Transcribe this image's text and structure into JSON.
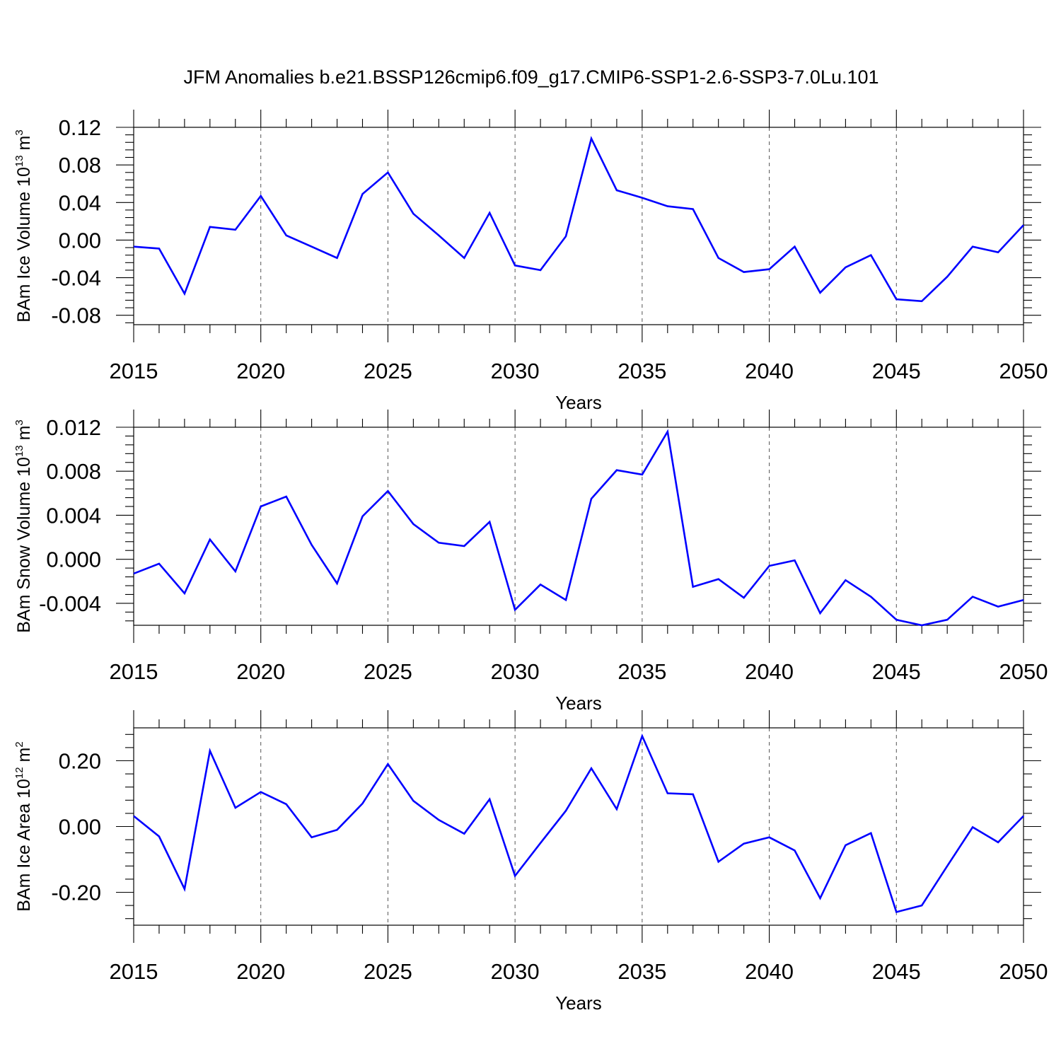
{
  "title": "JFM Anomalies b.e21.BSSP126cmip6.f09_g17.CMIP6-SSP1-2.6-SSP3-7.0Lu.101",
  "colors": {
    "line": "#0000ff",
    "grid": "#555555",
    "axis": "#000000"
  },
  "chart_data": [
    {
      "type": "line",
      "xlabel": "Years",
      "ylabel": {
        "text": "BAm Ice Volume 10",
        "sup1": "13",
        "unit": " m",
        "sup2": "3"
      },
      "xlim": [
        2015,
        2050
      ],
      "ylim": [
        -0.09,
        0.12
      ],
      "xticks": [
        2015,
        2020,
        2025,
        2030,
        2035,
        2040,
        2045,
        2050
      ],
      "xtick_labels": [
        "2015",
        "2020",
        "2025",
        "2030",
        "2035",
        "2040",
        "2045",
        "2050"
      ],
      "yticks": [
        -0.08,
        -0.04,
        0.0,
        0.04,
        0.08,
        0.12
      ],
      "ytick_labels": [
        "-0.08",
        "-0.04",
        "0.00",
        "0.04",
        "0.08",
        "0.12"
      ],
      "grid": "dashed vertical at major x ticks",
      "x": [
        2015,
        2016,
        2017,
        2018,
        2019,
        2020,
        2021,
        2022,
        2023,
        2024,
        2025,
        2026,
        2027,
        2028,
        2029,
        2030,
        2031,
        2032,
        2033,
        2034,
        2035,
        2036,
        2037,
        2038,
        2039,
        2040,
        2041,
        2042,
        2043,
        2044,
        2045,
        2046,
        2047,
        2048,
        2049,
        2050
      ],
      "y": [
        -0.007,
        -0.009,
        -0.057,
        0.014,
        0.011,
        0.047,
        0.005,
        -0.007,
        -0.019,
        0.049,
        0.072,
        0.028,
        0.005,
        -0.019,
        0.029,
        -0.027,
        -0.032,
        0.004,
        0.108,
        0.053,
        0.045,
        0.036,
        0.033,
        -0.019,
        -0.034,
        -0.031,
        -0.007,
        -0.056,
        -0.029,
        -0.016,
        -0.063,
        -0.065,
        -0.039,
        -0.007,
        -0.013,
        0.016
      ]
    },
    {
      "type": "line",
      "xlabel": "Years",
      "ylabel": {
        "text": "BAm Snow Volume 10",
        "sup1": "13",
        "unit": " m",
        "sup2": "3"
      },
      "xlim": [
        2015,
        2050
      ],
      "ylim": [
        -0.006,
        0.012
      ],
      "xticks": [
        2015,
        2020,
        2025,
        2030,
        2035,
        2040,
        2045,
        2050
      ],
      "xtick_labels": [
        "2015",
        "2020",
        "2025",
        "2030",
        "2035",
        "2040",
        "2045",
        "2050"
      ],
      "yticks": [
        -0.004,
        0.0,
        0.004,
        0.008,
        0.012
      ],
      "ytick_labels": [
        "-0.004",
        "0.000",
        "0.004",
        "0.008",
        "0.012"
      ],
      "grid": "dashed vertical at major x ticks",
      "x": [
        2015,
        2016,
        2017,
        2018,
        2019,
        2020,
        2021,
        2022,
        2023,
        2024,
        2025,
        2026,
        2027,
        2028,
        2029,
        2030,
        2031,
        2032,
        2033,
        2034,
        2035,
        2036,
        2037,
        2038,
        2039,
        2040,
        2041,
        2042,
        2043,
        2044,
        2045,
        2046,
        2047,
        2048,
        2049,
        2050
      ],
      "y": [
        -0.0013,
        -0.0004,
        -0.0031,
        0.0018,
        -0.0011,
        0.0048,
        0.0057,
        0.0013,
        -0.0022,
        0.0039,
        0.0062,
        0.0032,
        0.0015,
        0.0012,
        0.0034,
        -0.0046,
        -0.0023,
        -0.0037,
        0.0055,
        0.0081,
        0.0077,
        0.0116,
        -0.0025,
        -0.0018,
        -0.0035,
        -0.0006,
        -0.0001,
        -0.0049,
        -0.0019,
        -0.0034,
        -0.0055,
        -0.006,
        -0.0055,
        -0.0034,
        -0.0043,
        -0.0037
      ]
    },
    {
      "type": "line",
      "xlabel": "Years",
      "ylabel": {
        "text": "BAm Ice Area 10",
        "sup1": "12",
        "unit": " m",
        "sup2": "2"
      },
      "xlim": [
        2015,
        2050
      ],
      "ylim": [
        -0.3,
        0.3
      ],
      "xticks": [
        2015,
        2020,
        2025,
        2030,
        2035,
        2040,
        2045,
        2050
      ],
      "xtick_labels": [
        "2015",
        "2020",
        "2025",
        "2030",
        "2035",
        "2040",
        "2045",
        "2050"
      ],
      "yticks": [
        -0.2,
        0.0,
        0.2
      ],
      "ytick_labels": [
        "-0.20",
        "0.00",
        "0.20"
      ],
      "grid": "dashed vertical at major x ticks",
      "x": [
        2015,
        2016,
        2017,
        2018,
        2019,
        2020,
        2021,
        2022,
        2023,
        2024,
        2025,
        2026,
        2027,
        2028,
        2029,
        2030,
        2031,
        2032,
        2033,
        2034,
        2035,
        2036,
        2037,
        2038,
        2039,
        2040,
        2041,
        2042,
        2043,
        2044,
        2045,
        2046,
        2047,
        2048,
        2049,
        2050
      ],
      "y": [
        0.032,
        -0.03,
        -0.19,
        0.23,
        0.057,
        0.105,
        0.068,
        -0.033,
        -0.01,
        0.07,
        0.19,
        0.078,
        0.02,
        -0.022,
        0.083,
        -0.15,
        -0.05,
        0.048,
        0.177,
        0.053,
        0.275,
        0.101,
        0.098,
        -0.107,
        -0.052,
        -0.033,
        -0.073,
        -0.218,
        -0.057,
        -0.02,
        -0.26,
        -0.24,
        -0.12,
        -0.002,
        -0.048,
        0.032
      ]
    }
  ]
}
